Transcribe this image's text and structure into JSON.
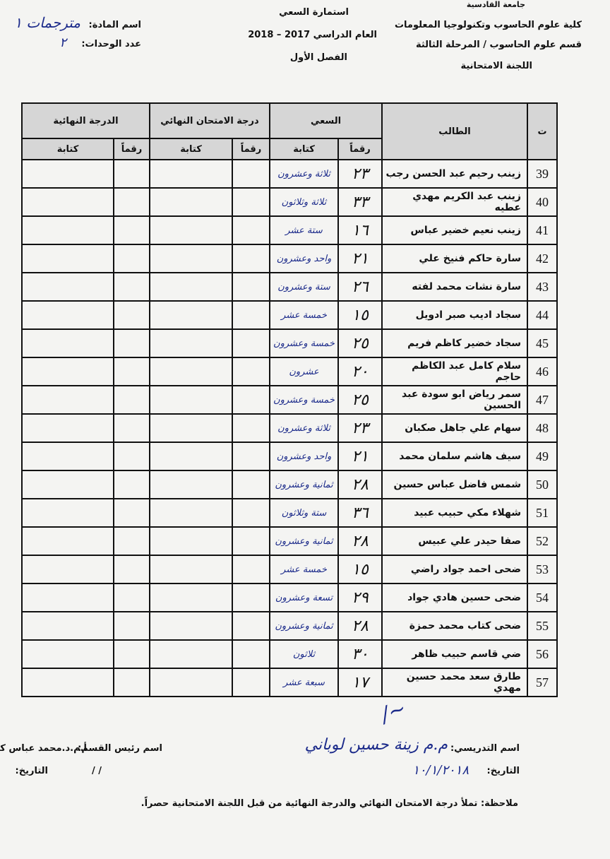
{
  "header": {
    "university": "جامعة القادسية",
    "college": "كلية علوم الحاسوب وتكنولوجيا المعلومات",
    "department": "قسم علوم الحاسوب / المرحلة الثالثة",
    "committee": "اللجنة الامتحانية",
    "form_title": "استمارة السعي",
    "year": "العام الدراسي 2017 – 2018",
    "semester": "الفصل الأول",
    "subject_label": "اسم المادة:",
    "subject_value": "مترجمات ١",
    "units_label": "عدد الوحدات:",
    "units_value": "٢"
  },
  "table": {
    "col_num": "ت",
    "col_student": "الطالب",
    "col_effort": "السعي",
    "col_exam": "درجة الامتحان النهائي",
    "col_final": "الدرجة النهائية",
    "sub_digits": "رقماً",
    "sub_words": "كتابة",
    "rows": [
      {
        "n": "39",
        "name": "زينب رحيم عبد الحسن رجب",
        "mark": "٢٣",
        "words": "ثلاثة وعشرون"
      },
      {
        "n": "40",
        "name": "زينب عبد الكريم مهدي عطيه",
        "mark": "٣٣",
        "words": "ثلاثة وثلاثون"
      },
      {
        "n": "41",
        "name": "زينب نعيم خضير عباس",
        "mark": "١٦",
        "words": "ستة عشر"
      },
      {
        "n": "42",
        "name": "سارة حاكم فنيخ علي",
        "mark": "٢١",
        "words": "واحد وعشرون"
      },
      {
        "n": "43",
        "name": "سارة نشات محمد لفته",
        "mark": "٢٦",
        "words": "ستة وعشرون"
      },
      {
        "n": "44",
        "name": "سجاد اديب صبر ادويل",
        "mark": "١٥",
        "words": "خمسة عشر"
      },
      {
        "n": "45",
        "name": "سجاد خضير كاظم فريم",
        "mark": "٢٥",
        "words": "خمسة وعشرون"
      },
      {
        "n": "46",
        "name": "سلام كامل عبد الكاظم حاجم",
        "mark": "٢٠",
        "words": "عشرون"
      },
      {
        "n": "47",
        "name": "سمر رياض ابو سودة عبد الحسين",
        "mark": "٢٥",
        "words": "خمسة وعشرون"
      },
      {
        "n": "48",
        "name": "سهام علي جاهل صكبان",
        "mark": "٢٣",
        "words": "ثلاثة وعشرون"
      },
      {
        "n": "49",
        "name": "سيف هاشم سلمان محمد",
        "mark": "٢١",
        "words": "واحد وعشرون"
      },
      {
        "n": "50",
        "name": "شمس فاضل عباس حسين",
        "mark": "٢٨",
        "words": "ثمانية وعشرون"
      },
      {
        "n": "51",
        "name": "شهلاء مكي  حبيب عبيد",
        "mark": "٣٦",
        "words": "ستة وثلاثون"
      },
      {
        "n": "52",
        "name": "صفا حيدر علي عبيس",
        "mark": "٢٨",
        "words": "ثمانية وعشرون"
      },
      {
        "n": "53",
        "name": "ضحى احمد جواد راضي",
        "mark": "١٥",
        "words": "خمسة عشر"
      },
      {
        "n": "54",
        "name": "ضحى حسين هادي جواد",
        "mark": "٢٩",
        "words": "تسعة وعشرون"
      },
      {
        "n": "55",
        "name": "ضحى كتاب محمد حمزة",
        "mark": "٢٨",
        "words": "ثمانية وعشرون"
      },
      {
        "n": "56",
        "name": "ضي قاسم حبيب ظاهر",
        "mark": "٣٠",
        "words": "ثلاثون"
      },
      {
        "n": "57",
        "name": "طارق سعد محمد حسين مهدي",
        "mark": "١٧",
        "words": "سبعة عشر"
      }
    ]
  },
  "footer": {
    "teacher_label": "اسم التدريسي:",
    "teacher_value": "م.م زينة حسين لوباني",
    "date_label": "التاريخ:",
    "date_value": "١٠/١/٢٠١٨",
    "head_label": "اسم رئيس القسم:",
    "head_value": "أ.م.د.محمد عباس كاظم",
    "head_date_label": "التاريخ:",
    "head_date_value": "/    /",
    "note": "ملاحظة: تملأ درجة الامتحان النهائي والدرجة النهائية من قبل اللجنة الامتحانية حصراً."
  }
}
